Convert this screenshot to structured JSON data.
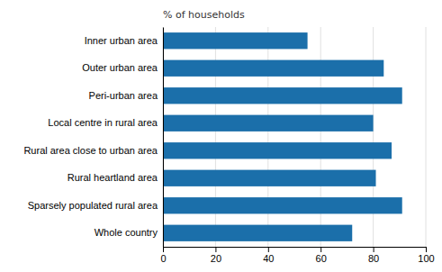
{
  "chart_data": {
    "type": "bar",
    "orientation": "horizontal",
    "xlabel": "% of households",
    "categories": [
      "Whole country",
      "Sparsely populated rural area",
      "Rural heartland area",
      "Rural area close to urban area",
      "Local centre in rural area",
      "Peri-urban area",
      "Outer urban area",
      "Inner urban area"
    ],
    "values": [
      72,
      91,
      81,
      87,
      80,
      91,
      84,
      55
    ],
    "color": "#1b6faa",
    "xlim": [
      0,
      100
    ],
    "xticks": [
      0,
      20,
      40,
      60,
      80,
      100
    ],
    "grid": true
  }
}
